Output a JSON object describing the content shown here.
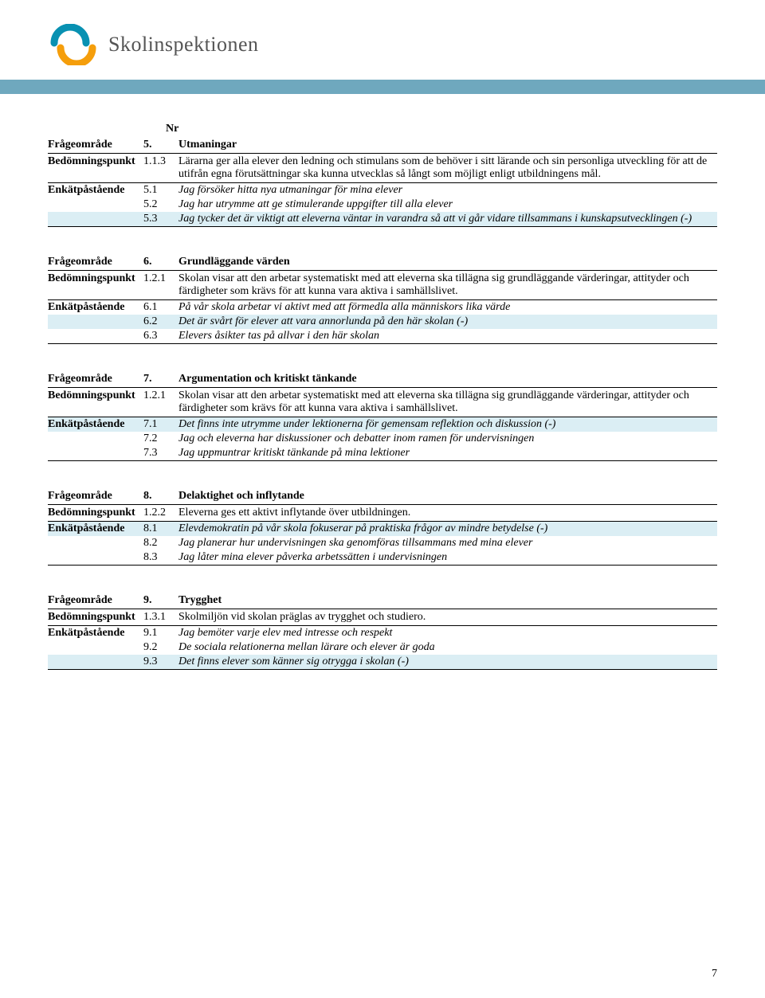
{
  "colors": {
    "header_bar": "#6fa8be",
    "highlight_bg": "#dbeef4",
    "logo_blue": "#0891b2",
    "logo_orange": "#f59e0b",
    "logo_text": "#555555",
    "border": "#000000"
  },
  "logo": {
    "text": "Skolinspektionen"
  },
  "nr_label": "Nr",
  "labels": {
    "frageomrade": "Frågeområde",
    "bedomningspunkt": "Bedömningspunkt",
    "enkatpastaende": "Enkätpåstående"
  },
  "sections": [
    {
      "show_nr": true,
      "area_num": "5.",
      "area_title": "Utmaningar",
      "bed_num": "1.1.3",
      "bed_text": "Lärarna ger alla elever den ledning och stimulans som de behöver i sitt lärande och sin personliga utveckling för att de utifrån egna förutsättningar ska kunna utvecklas så långt som möjligt enligt utbildningens mål.",
      "items": [
        {
          "num": "5.1",
          "text": "Jag försöker hitta nya utmaningar för mina elever",
          "highlight": false
        },
        {
          "num": "5.2",
          "text": "Jag har utrymme att ge stimulerande uppgifter till alla elever",
          "highlight": false
        },
        {
          "num": "5.3",
          "text": "Jag tycker det är viktigt att eleverna väntar in varandra så att vi går vidare tillsammans i kunskapsutvecklingen (-)",
          "highlight": true
        }
      ]
    },
    {
      "show_nr": false,
      "area_num": "6.",
      "area_title": "Grundläggande värden",
      "bed_num": "1.2.1",
      "bed_text": "Skolan visar att den arbetar systematiskt med att eleverna ska tillägna sig grundläggande värderingar, attityder och färdigheter som krävs för att kunna vara aktiva i samhällslivet.",
      "items": [
        {
          "num": "6.1",
          "text": "På vår skola arbetar vi aktivt med att förmedla alla människors lika värde",
          "highlight": false
        },
        {
          "num": "6.2",
          "text": "Det är svårt för elever att vara annorlunda på den här skolan (-)",
          "highlight": true
        },
        {
          "num": "6.3",
          "text": "Elevers åsikter tas på allvar i den här skolan",
          "highlight": false
        }
      ]
    },
    {
      "show_nr": false,
      "area_num": "7.",
      "area_title": "Argumentation och kritiskt tänkande",
      "bed_num": "1.2.1",
      "bed_text": "Skolan visar att den arbetar systematiskt med att eleverna ska tillägna sig grundläggande värderingar, attityder och färdigheter som krävs för att kunna vara aktiva i samhällslivet.",
      "items": [
        {
          "num": "7.1",
          "text": "Det finns inte utrymme under lektionerna för gemensam reflektion och diskussion (-)",
          "highlight": true
        },
        {
          "num": "7.2",
          "text": "Jag och eleverna har diskussioner och debatter inom ramen för undervisningen",
          "highlight": false
        },
        {
          "num": "7.3",
          "text": "Jag uppmuntrar kritiskt tänkande på mina lektioner",
          "highlight": false
        }
      ]
    },
    {
      "show_nr": false,
      "area_num": "8.",
      "area_title": "Delaktighet och inflytande",
      "bed_num": "1.2.2",
      "bed_text": "Eleverna ges ett aktivt inflytande över utbildningen.",
      "items": [
        {
          "num": "8.1",
          "text": "Elevdemokratin på vår skola fokuserar på praktiska frågor av mindre betydelse (-)",
          "highlight": true
        },
        {
          "num": "8.2",
          "text": "Jag planerar hur undervisningen ska genomföras tillsammans med mina elever",
          "highlight": false
        },
        {
          "num": "8.3",
          "text": "Jag låter mina elever påverka arbetssätten i undervisningen",
          "highlight": false
        }
      ]
    },
    {
      "show_nr": false,
      "area_num": "9.",
      "area_title": "Trygghet",
      "bed_num": "1.3.1",
      "bed_text": "Skolmiljön vid skolan präglas av trygghet och studiero.",
      "items": [
        {
          "num": "9.1",
          "text": "Jag bemöter varje elev med intresse och respekt",
          "highlight": false
        },
        {
          "num": "9.2",
          "text": "De sociala relationerna mellan lärare och elever är goda",
          "highlight": false
        },
        {
          "num": "9.3",
          "text": "Det finns elever som känner sig otrygga i skolan (-)",
          "highlight": true
        }
      ]
    }
  ],
  "page_number": "7"
}
